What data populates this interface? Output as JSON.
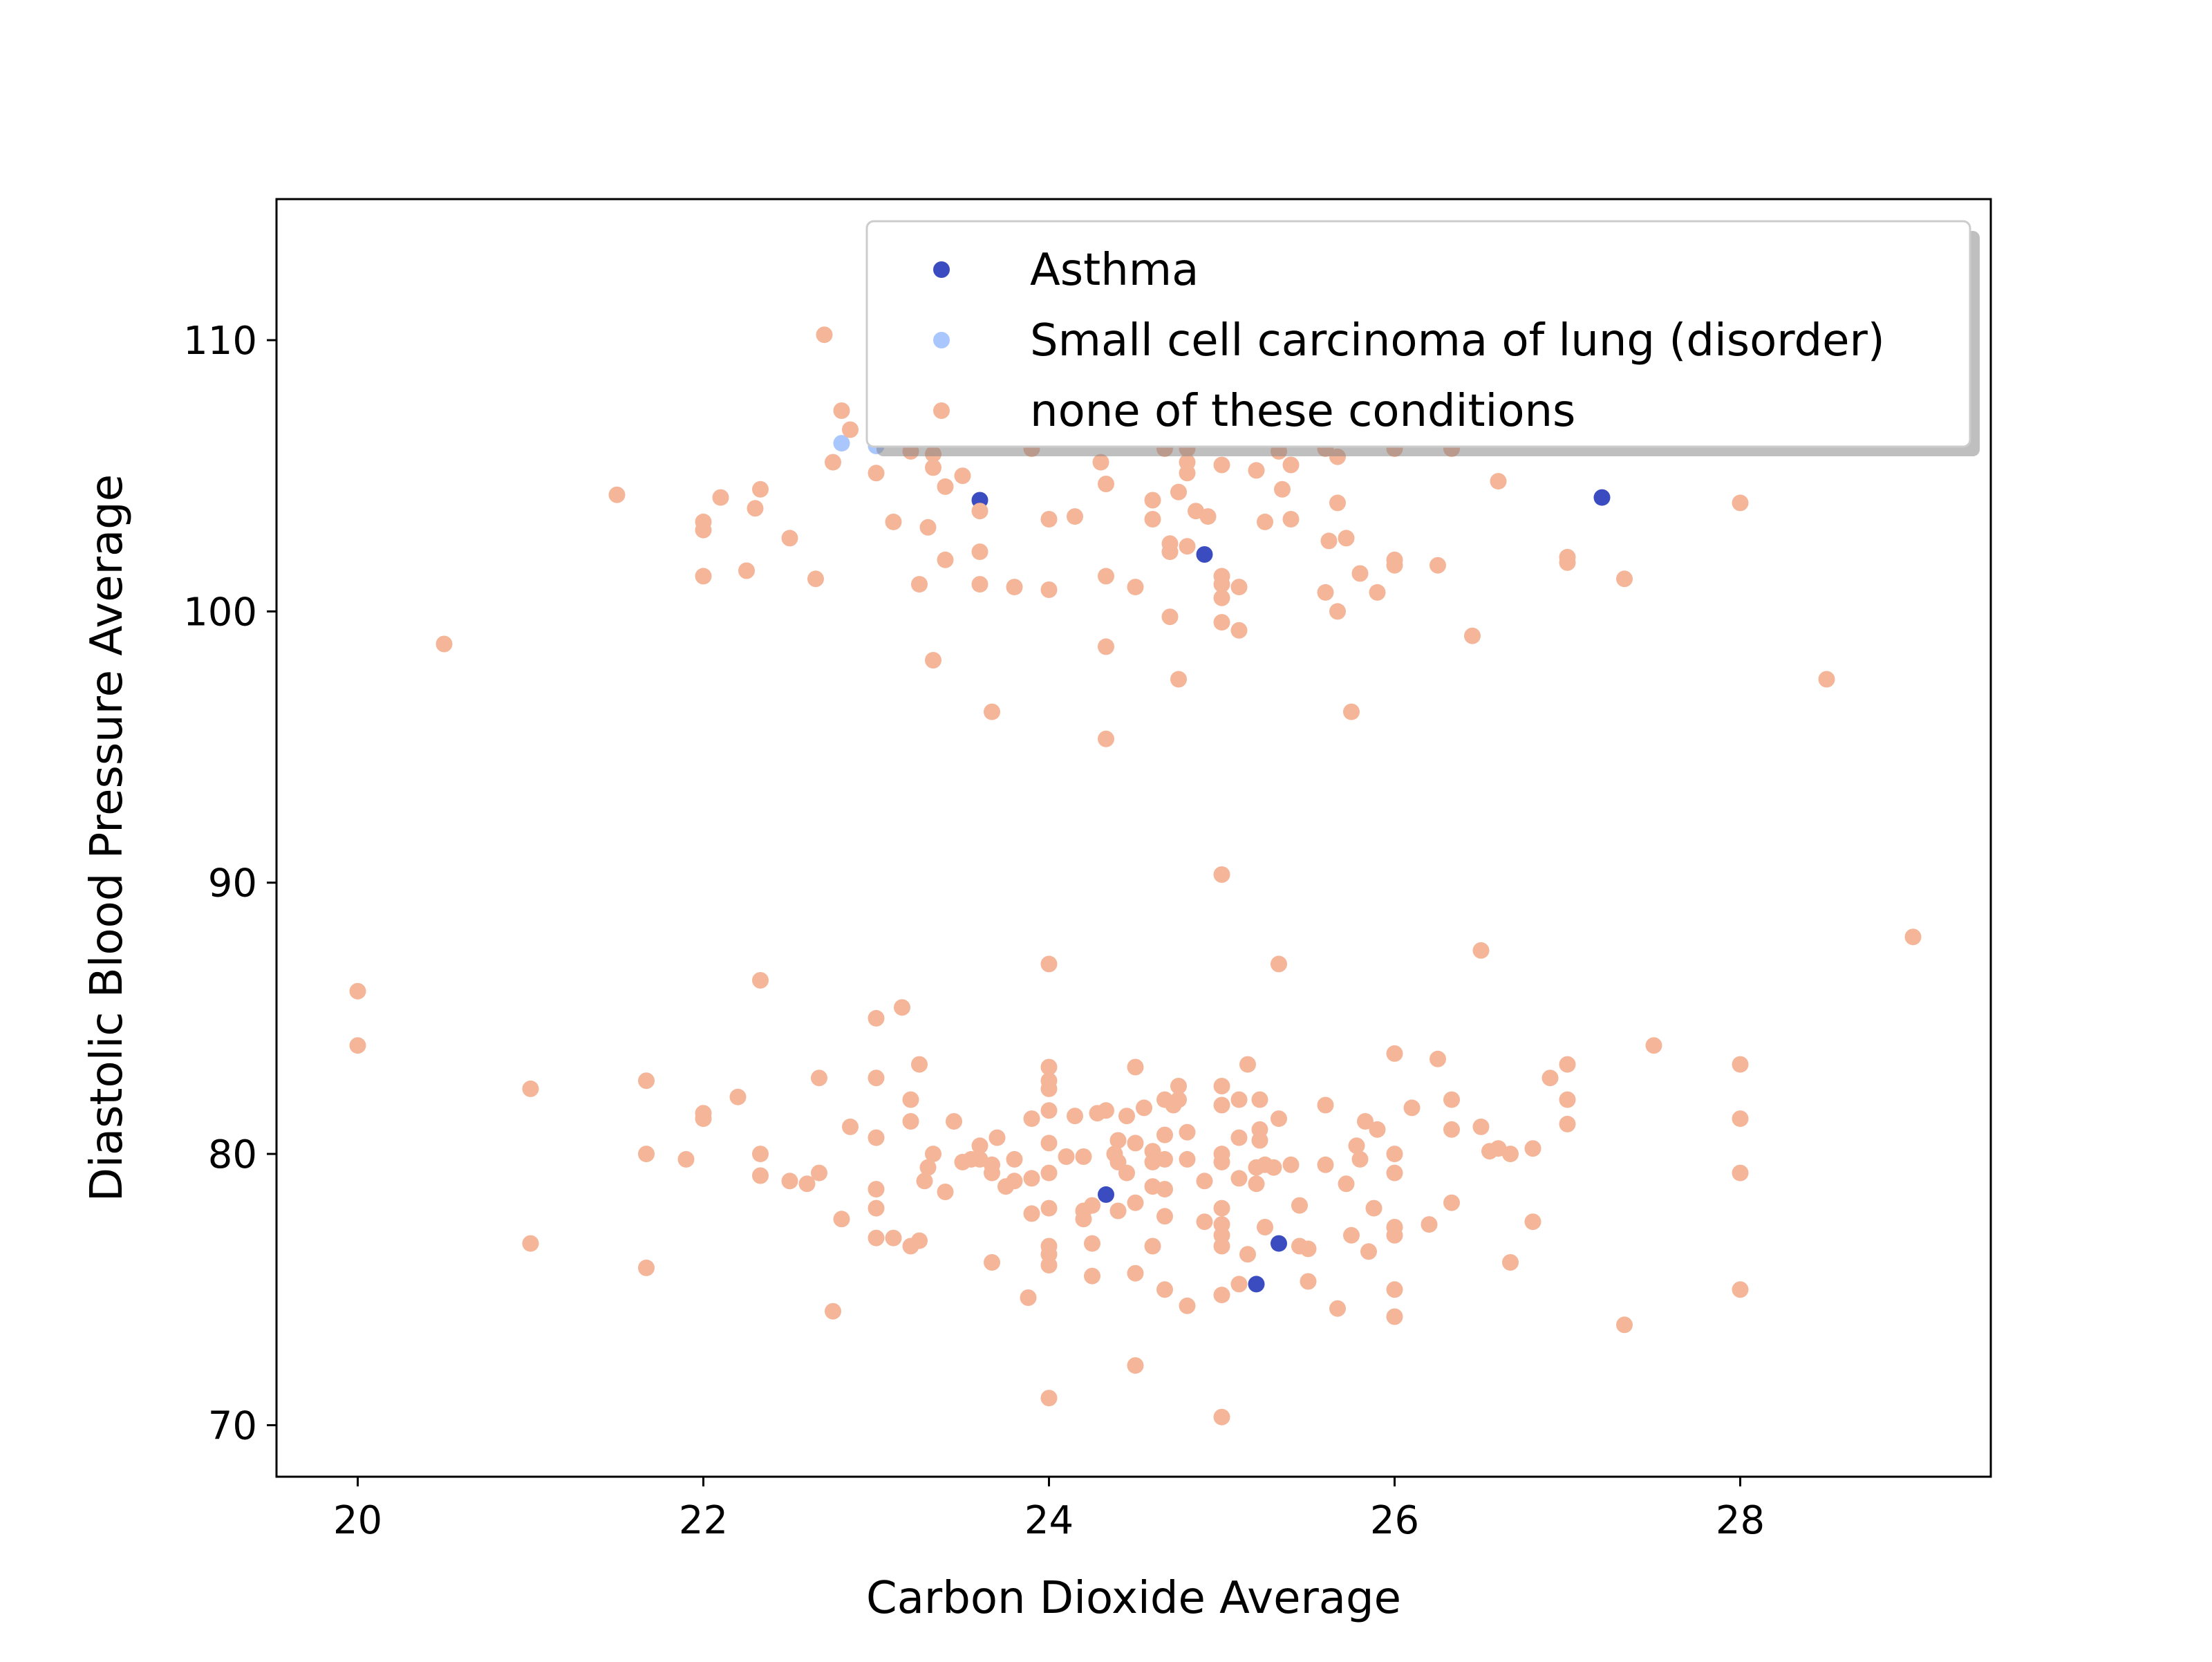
{
  "chart_data": {
    "type": "scatter",
    "title": "",
    "xlabel": "Carbon Dioxide Average",
    "ylabel": "Diastolic Blood Pressure Average",
    "xlim": [
      19.53,
      29.45
    ],
    "ylim": [
      68.1,
      115.2
    ],
    "xticks": [
      20,
      22,
      24,
      26,
      28
    ],
    "yticks": [
      70,
      80,
      90,
      100,
      110
    ],
    "xtick_labels": [
      "20",
      "22",
      "24",
      "26",
      "28"
    ],
    "ytick_labels": [
      "70",
      "80",
      "90",
      "100",
      "110"
    ],
    "grid": false,
    "legend": {
      "placement": "top-right",
      "shadow": true
    },
    "series": [
      {
        "name": "Asthma",
        "color": "#3b4cc0",
        "points": [
          [
            23.6,
            104.1
          ],
          [
            27.2,
            104.2
          ],
          [
            24.9,
            102.1
          ],
          [
            24.33,
            78.5
          ],
          [
            25.33,
            76.7
          ],
          [
            25.2,
            75.2
          ]
        ]
      },
      {
        "name": "Small cell carcinoma of lung (disorder)",
        "color": "#aac7fd",
        "points": [
          [
            22.8,
            106.2
          ],
          [
            23.0,
            106.1
          ]
        ]
      },
      {
        "name": "none of these conditions",
        "color": "#f4b599",
        "points": [
          [
            20.0,
            86.0
          ],
          [
            20.0,
            84.0
          ],
          [
            20.5,
            98.8
          ],
          [
            21.0,
            82.4
          ],
          [
            21.0,
            76.7
          ],
          [
            21.5,
            104.3
          ],
          [
            21.67,
            82.7
          ],
          [
            21.67,
            80.0
          ],
          [
            21.67,
            75.8
          ],
          [
            21.9,
            79.8
          ],
          [
            22.0,
            103.3
          ],
          [
            22.0,
            103.0
          ],
          [
            22.0,
            101.3
          ],
          [
            22.0,
            81.5
          ],
          [
            22.0,
            81.3
          ],
          [
            22.1,
            104.2
          ],
          [
            22.2,
            82.1
          ],
          [
            22.25,
            101.5
          ],
          [
            22.3,
            103.8
          ],
          [
            22.33,
            104.5
          ],
          [
            22.33,
            86.4
          ],
          [
            22.33,
            80.0
          ],
          [
            22.33,
            79.2
          ],
          [
            22.5,
            102.7
          ],
          [
            22.5,
            79.0
          ],
          [
            22.6,
            78.9
          ],
          [
            22.65,
            101.2
          ],
          [
            22.67,
            82.8
          ],
          [
            22.67,
            79.3
          ],
          [
            22.7,
            110.2
          ],
          [
            22.75,
            105.5
          ],
          [
            22.75,
            74.2
          ],
          [
            22.8,
            107.4
          ],
          [
            22.8,
            77.6
          ],
          [
            22.85,
            106.7
          ],
          [
            22.85,
            81.0
          ],
          [
            23.0,
            105.1
          ],
          [
            23.0,
            85.0
          ],
          [
            23.0,
            82.8
          ],
          [
            23.0,
            80.6
          ],
          [
            23.0,
            78.7
          ],
          [
            23.0,
            78.0
          ],
          [
            23.0,
            76.9
          ],
          [
            23.1,
            103.3
          ],
          [
            23.1,
            76.9
          ],
          [
            23.15,
            85.4
          ],
          [
            23.2,
            106.2
          ],
          [
            23.2,
            105.9
          ],
          [
            23.2,
            82.0
          ],
          [
            23.2,
            81.2
          ],
          [
            23.2,
            76.6
          ],
          [
            23.25,
            101.0
          ],
          [
            23.25,
            83.3
          ],
          [
            23.25,
            76.8
          ],
          [
            23.28,
            79.0
          ],
          [
            23.3,
            103.1
          ],
          [
            23.3,
            79.5
          ],
          [
            23.33,
            105.8
          ],
          [
            23.33,
            105.3
          ],
          [
            23.33,
            98.2
          ],
          [
            23.33,
            80.0
          ],
          [
            23.4,
            104.6
          ],
          [
            23.4,
            101.9
          ],
          [
            23.4,
            78.6
          ],
          [
            23.45,
            81.2
          ],
          [
            23.5,
            105.0
          ],
          [
            23.5,
            79.7
          ],
          [
            23.55,
            79.8
          ],
          [
            23.6,
            103.7
          ],
          [
            23.6,
            102.2
          ],
          [
            23.6,
            101.0
          ],
          [
            23.6,
            80.3
          ],
          [
            23.6,
            79.8
          ],
          [
            23.67,
            96.3
          ],
          [
            23.67,
            79.6
          ],
          [
            23.67,
            79.3
          ],
          [
            23.67,
            76.0
          ],
          [
            23.7,
            80.6
          ],
          [
            23.75,
            78.8
          ],
          [
            23.8,
            100.9
          ],
          [
            23.8,
            79.8
          ],
          [
            23.8,
            79.0
          ],
          [
            23.88,
            74.7
          ],
          [
            23.9,
            106.0
          ],
          [
            23.9,
            81.3
          ],
          [
            23.9,
            79.1
          ],
          [
            23.9,
            77.8
          ],
          [
            24.0,
            103.4
          ],
          [
            24.0,
            100.8
          ],
          [
            24.0,
            87.0
          ],
          [
            24.0,
            83.2
          ],
          [
            24.0,
            82.7
          ],
          [
            24.0,
            82.4
          ],
          [
            24.0,
            81.6
          ],
          [
            24.0,
            80.4
          ],
          [
            24.0,
            79.3
          ],
          [
            24.0,
            78.0
          ],
          [
            24.0,
            76.6
          ],
          [
            24.0,
            76.3
          ],
          [
            24.0,
            75.9
          ],
          [
            24.0,
            71.0
          ],
          [
            24.1,
            79.9
          ],
          [
            24.15,
            103.5
          ],
          [
            24.15,
            81.4
          ],
          [
            24.2,
            79.9
          ],
          [
            24.2,
            77.9
          ],
          [
            24.2,
            77.6
          ],
          [
            24.25,
            78.1
          ],
          [
            24.25,
            76.7
          ],
          [
            24.25,
            75.5
          ],
          [
            24.28,
            81.5
          ],
          [
            24.3,
            105.5
          ],
          [
            24.33,
            104.7
          ],
          [
            24.33,
            101.3
          ],
          [
            24.33,
            98.7
          ],
          [
            24.33,
            95.3
          ],
          [
            24.33,
            81.6
          ],
          [
            24.38,
            80.0
          ],
          [
            24.4,
            80.5
          ],
          [
            24.4,
            79.7
          ],
          [
            24.4,
            77.9
          ],
          [
            24.45,
            81.4
          ],
          [
            24.45,
            79.3
          ],
          [
            24.5,
            100.9
          ],
          [
            24.5,
            83.2
          ],
          [
            24.5,
            80.4
          ],
          [
            24.5,
            78.2
          ],
          [
            24.5,
            75.6
          ],
          [
            24.5,
            72.2
          ],
          [
            24.55,
            81.7
          ],
          [
            24.6,
            104.1
          ],
          [
            24.6,
            103.4
          ],
          [
            24.6,
            80.1
          ],
          [
            24.6,
            79.7
          ],
          [
            24.6,
            78.8
          ],
          [
            24.6,
            76.6
          ],
          [
            24.67,
            106.0
          ],
          [
            24.67,
            82.0
          ],
          [
            24.67,
            80.7
          ],
          [
            24.67,
            79.8
          ],
          [
            24.67,
            78.7
          ],
          [
            24.67,
            77.7
          ],
          [
            24.67,
            75.0
          ],
          [
            24.7,
            102.5
          ],
          [
            24.7,
            102.2
          ],
          [
            24.7,
            99.8
          ],
          [
            24.72,
            81.8
          ],
          [
            24.75,
            104.4
          ],
          [
            24.75,
            97.5
          ],
          [
            24.75,
            82.5
          ],
          [
            24.75,
            82.0
          ],
          [
            24.8,
            106.0
          ],
          [
            24.8,
            105.5
          ],
          [
            24.8,
            105.1
          ],
          [
            24.8,
            102.4
          ],
          [
            24.8,
            80.8
          ],
          [
            24.8,
            79.8
          ],
          [
            24.8,
            74.4
          ],
          [
            24.85,
            103.7
          ],
          [
            24.9,
            79.0
          ],
          [
            24.9,
            77.5
          ],
          [
            24.92,
            103.5
          ],
          [
            25.0,
            101.3
          ],
          [
            25.0,
            101.0
          ],
          [
            25.0,
            100.5
          ],
          [
            25.0,
            99.6
          ],
          [
            25.0,
            90.3
          ],
          [
            25.0,
            82.5
          ],
          [
            25.0,
            81.8
          ],
          [
            25.0,
            80.0
          ],
          [
            25.0,
            79.7
          ],
          [
            25.0,
            78.0
          ],
          [
            25.0,
            77.4
          ],
          [
            25.0,
            77.0
          ],
          [
            25.0,
            76.6
          ],
          [
            25.0,
            74.8
          ],
          [
            25.0,
            70.3
          ],
          [
            25.0,
            105.4
          ],
          [
            25.1,
            100.9
          ],
          [
            25.1,
            99.3
          ],
          [
            25.1,
            82.0
          ],
          [
            25.1,
            80.6
          ],
          [
            25.1,
            79.1
          ],
          [
            25.1,
            75.2
          ],
          [
            25.15,
            83.3
          ],
          [
            25.15,
            76.3
          ],
          [
            25.2,
            105.2
          ],
          [
            25.2,
            79.5
          ],
          [
            25.2,
            78.9
          ],
          [
            25.22,
            82.0
          ],
          [
            25.22,
            80.9
          ],
          [
            25.22,
            80.5
          ],
          [
            25.25,
            103.3
          ],
          [
            25.25,
            79.6
          ],
          [
            25.25,
            77.3
          ],
          [
            25.3,
            79.5
          ],
          [
            25.33,
            105.9
          ],
          [
            25.33,
            87.0
          ],
          [
            25.33,
            81.3
          ],
          [
            25.35,
            104.5
          ],
          [
            25.4,
            105.4
          ],
          [
            25.4,
            103.4
          ],
          [
            25.4,
            79.6
          ],
          [
            25.45,
            78.1
          ],
          [
            25.45,
            76.6
          ],
          [
            25.5,
            76.5
          ],
          [
            25.5,
            75.3
          ],
          [
            25.6,
            106.0
          ],
          [
            25.6,
            100.7
          ],
          [
            25.6,
            81.8
          ],
          [
            25.6,
            79.6
          ],
          [
            25.62,
            102.6
          ],
          [
            25.67,
            105.7
          ],
          [
            25.67,
            104.0
          ],
          [
            25.67,
            100.0
          ],
          [
            25.67,
            74.3
          ],
          [
            25.72,
            102.7
          ],
          [
            25.72,
            78.9
          ],
          [
            25.75,
            96.3
          ],
          [
            25.75,
            77.0
          ],
          [
            25.78,
            80.3
          ],
          [
            25.8,
            101.4
          ],
          [
            25.8,
            79.8
          ],
          [
            25.83,
            81.2
          ],
          [
            25.85,
            76.4
          ],
          [
            25.88,
            78.0
          ],
          [
            25.9,
            100.7
          ],
          [
            25.9,
            80.9
          ],
          [
            26.0,
            106.0
          ],
          [
            26.0,
            101.9
          ],
          [
            26.0,
            101.7
          ],
          [
            26.0,
            83.7
          ],
          [
            26.0,
            80.0
          ],
          [
            26.0,
            79.3
          ],
          [
            26.0,
            77.3
          ],
          [
            26.0,
            77.0
          ],
          [
            26.0,
            75.0
          ],
          [
            26.0,
            74.0
          ],
          [
            26.1,
            81.7
          ],
          [
            26.2,
            77.4
          ],
          [
            26.25,
            101.7
          ],
          [
            26.25,
            83.5
          ],
          [
            26.33,
            106.0
          ],
          [
            26.33,
            82.0
          ],
          [
            26.33,
            80.9
          ],
          [
            26.33,
            78.2
          ],
          [
            26.45,
            99.1
          ],
          [
            26.5,
            87.5
          ],
          [
            26.5,
            81.0
          ],
          [
            26.55,
            80.1
          ],
          [
            26.6,
            104.8
          ],
          [
            26.6,
            80.2
          ],
          [
            26.67,
            80.0
          ],
          [
            26.67,
            76.0
          ],
          [
            26.8,
            80.2
          ],
          [
            26.8,
            77.5
          ],
          [
            26.9,
            82.8
          ],
          [
            27.0,
            102.0
          ],
          [
            27.0,
            101.8
          ],
          [
            27.0,
            83.3
          ],
          [
            27.0,
            82.0
          ],
          [
            27.0,
            81.1
          ],
          [
            27.33,
            101.2
          ],
          [
            27.33,
            73.7
          ],
          [
            27.5,
            84.0
          ],
          [
            28.0,
            104.0
          ],
          [
            28.0,
            83.3
          ],
          [
            28.0,
            81.3
          ],
          [
            28.0,
            79.3
          ],
          [
            28.0,
            75.0
          ],
          [
            28.5,
            97.5
          ],
          [
            29.0,
            88.0
          ]
        ]
      }
    ]
  }
}
